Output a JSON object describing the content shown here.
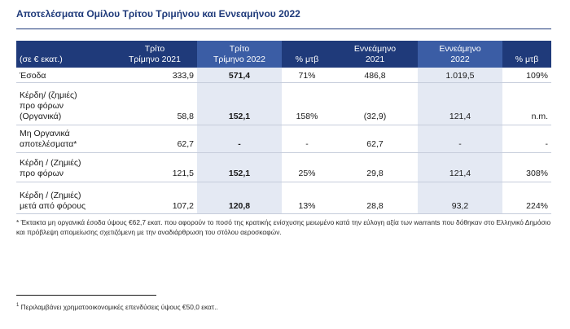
{
  "title": "Αποτελέσματα Ομίλου Τρίτου Τριμήνου και Εννεαμήνου 2022",
  "table": {
    "headers": [
      [
        "",
        "(σε € εκατ.)"
      ],
      [
        "Τρίτο",
        "Τρίμηνο 2021"
      ],
      [
        "Τρίτο",
        "Τρίμηνο 2022"
      ],
      [
        "",
        "% μτβ"
      ],
      [
        "Εννεάμηνο",
        "2021"
      ],
      [
        "Εννεάμηνο",
        "2022"
      ],
      [
        "",
        "% μτβ"
      ]
    ],
    "rows": [
      {
        "label": [
          "Έσοδα"
        ],
        "q2021": "333,9",
        "q2022": "571,4",
        "q_change": "71%",
        "n2021": "486,8",
        "n2022": "1.019,5",
        "n_change": "109%"
      },
      {
        "label": [
          "Κέρδη/ (ζημιές)",
          "προ φόρων",
          "(Οργανικά)"
        ],
        "q2021": "58,8",
        "q2022": "152,1",
        "q_change": "158%",
        "n2021": "(32,9)",
        "n2022": "121,4",
        "n_change": "n.m."
      },
      {
        "label": [
          "Μη Οργανικά",
          "αποτελέσματα*"
        ],
        "q2021": "62,7",
        "q2022": "-",
        "q_change": "-",
        "n2021": "62,7",
        "n2022": "-",
        "n_change": "-"
      },
      {
        "label": [
          "Κέρδη / (Ζημιές)",
          "προ φόρων"
        ],
        "q2021": "121,5",
        "q2022": "152,1",
        "q_change": "25%",
        "n2021": "29,8",
        "n2022": "121,4",
        "n_change": "308%"
      },
      {
        "label": [
          "Κέρδη / (Ζημιές)",
          "μετά από φόρους"
        ],
        "q2021": "107,2",
        "q2022": "120,8",
        "q_change": "13%",
        "n2021": "28,8",
        "n2022": "93,2",
        "n_change": "224%"
      }
    ]
  },
  "note": "* Έκτακτα μη οργανικά έσοδα ύψους €62,7 εκατ. που αφορούν το ποσό της κρατικής ενίσχυσης μειωμένο κατά την εύλογη αξία των warrants που δόθηκαν στο Ελληνικό Δημόσιο και πρόβλεψη απομείωσης σχετιζόμενη με την αναδιάρθρωση του στόλου αεροσκαφών.",
  "footnote": {
    "marker": "1",
    "text": "Περιλαμβάνει χρηματοοικονομικές επενδύσεις ύψους €50,0 εκατ.."
  },
  "colors": {
    "header_bg": "#1f3a7a",
    "header_highlight": "#3b5da5",
    "highlight_column": "#e4e9f3",
    "title": "#1f3a7a"
  }
}
